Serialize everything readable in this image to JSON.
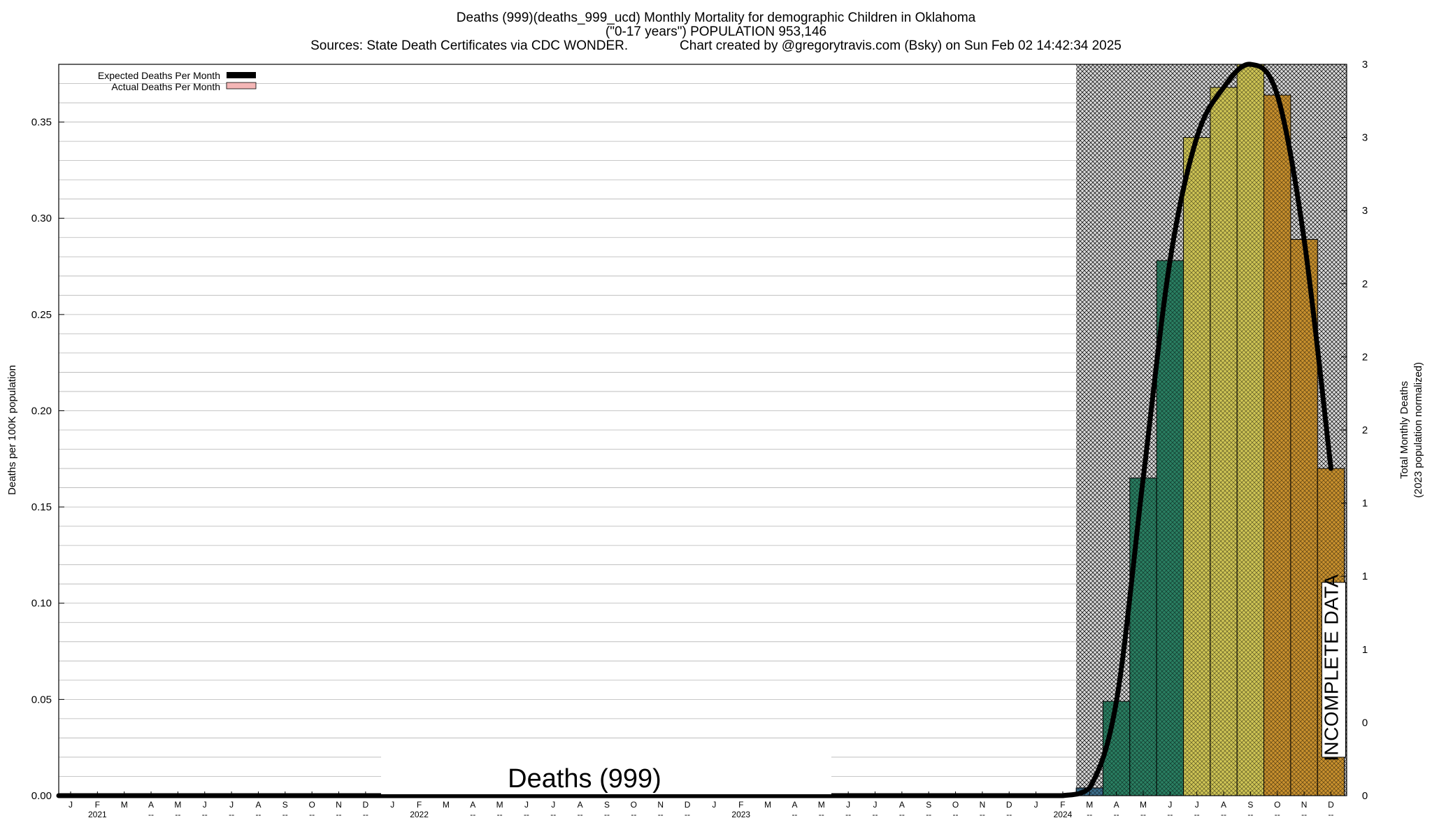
{
  "chart_data": {
    "type": "bar",
    "title_lines": [
      "Deaths (999)(deaths_999_ucd) Monthly Mortality for demographic Children in Oklahoma",
      "(\"0-17 years\") POPULATION 953,146",
      "Sources: State Death Certificates via CDC WONDER.              Chart created by @gregorytravis.com (Bsky) on Sun Feb 02 14:42:34 2025"
    ],
    "ylabel": "Deaths per 100K population",
    "y2label_lines": [
      "Total Monthly Deaths",
      "(2023 population normalized)"
    ],
    "ylim": [
      0,
      0.38
    ],
    "yticks": [
      "0.00",
      "0.05",
      "0.10",
      "0.15",
      "0.20",
      "0.25",
      "0.30",
      "0.35"
    ],
    "y2ticks": [
      "0",
      "0",
      "1",
      "1",
      "1",
      "2",
      "2",
      "2",
      "3",
      "3",
      "3"
    ],
    "month_letters": [
      "J",
      "F",
      "M",
      "A",
      "M",
      "J",
      "J",
      "A",
      "S",
      "O",
      "N",
      "D",
      "J",
      "F",
      "M",
      "A",
      "M",
      "J",
      "J",
      "A",
      "S",
      "O",
      "N",
      "D",
      "J",
      "F",
      "M",
      "A",
      "M",
      "J",
      "J",
      "A",
      "S",
      "O",
      "N",
      "D",
      "J",
      "F",
      "M",
      "A",
      "M",
      "J",
      "J",
      "A",
      "S",
      "O",
      "N",
      "D"
    ],
    "sublabels": [
      "",
      "2021",
      "",
      "--",
      "--",
      "--",
      "--",
      "--",
      "--",
      "--",
      "--",
      "--",
      "",
      "2022",
      "",
      "--",
      "--",
      "--",
      "--",
      "--",
      "--",
      "--",
      "--",
      "--",
      "",
      "2023",
      "",
      "--",
      "--",
      "--",
      "--",
      "--",
      "--",
      "--",
      "--",
      "--",
      "",
      "2024",
      "--",
      "--",
      "--",
      "--",
      "--",
      "--",
      "--",
      "--",
      "--",
      "--"
    ],
    "legend": [
      "Expected Deaths Per Month",
      "Actual Deaths Per Month"
    ],
    "watermark": "Deaths (999)",
    "annotation": "INCOMPLETE DATA",
    "shaded_region_start_month_index": 38,
    "series": [
      {
        "name": "Actual Deaths Per Month",
        "values": [
          0,
          0,
          0,
          0,
          0,
          0,
          0,
          0,
          0,
          0,
          0,
          0,
          0,
          0,
          0,
          0,
          0,
          0,
          0,
          0,
          0,
          0,
          0,
          0,
          0,
          0,
          0,
          0,
          0,
          0,
          0,
          0,
          0,
          0,
          0,
          0,
          0,
          0,
          0.004,
          0.049,
          0.165,
          0.278,
          0.342,
          0.368,
          0.38,
          0.364,
          0.289,
          0.17
        ],
        "colors": [
          "#3d6e8c",
          "#2a7f62",
          "#2a7f62",
          "#2a7f62",
          "#cfc555",
          "#cfc555",
          "#cfc555",
          "#c9912e",
          "#c9912e",
          "#c9912e"
        ]
      },
      {
        "name": "Expected Deaths Per Month",
        "values": [
          0,
          0,
          0,
          0,
          0,
          0,
          0,
          0,
          0,
          0,
          0,
          0,
          0,
          0,
          0,
          0,
          0,
          0,
          0,
          0,
          0,
          0,
          0,
          0,
          0,
          0,
          0,
          0,
          0,
          0,
          0,
          0,
          0,
          0,
          0,
          0,
          0,
          0,
          0.004,
          0.049,
          0.165,
          0.278,
          0.342,
          0.368,
          0.38,
          0.364,
          0.289,
          0.17
        ]
      }
    ],
    "line_color": "#000000",
    "grid": true
  }
}
